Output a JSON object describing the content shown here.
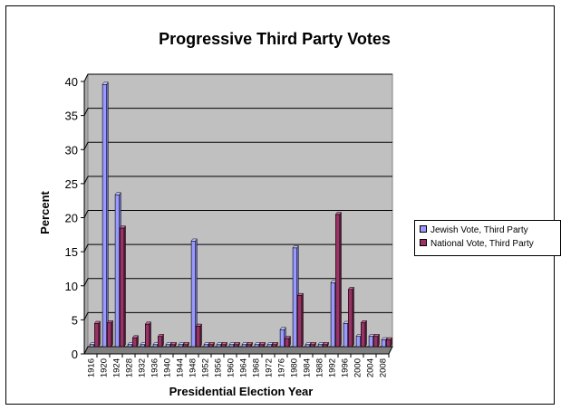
{
  "chart_data": {
    "type": "bar",
    "title": "Progressive Third Party Votes",
    "xlabel": "Presidential Election Year",
    "ylabel": "Percent",
    "ylim": [
      0,
      40
    ],
    "yticks": [
      0,
      5,
      10,
      15,
      20,
      25,
      30,
      35,
      40
    ],
    "grid": true,
    "legend_position": "right",
    "categories": [
      "1916",
      "1920",
      "1924",
      "1928",
      "1932",
      "1936",
      "1940",
      "1944",
      "1948",
      "1952",
      "1956",
      "1960",
      "1964",
      "1968",
      "1972",
      "1976",
      "1980",
      "1984",
      "1988",
      "1992",
      "1996",
      "2000",
      "2004",
      "2008"
    ],
    "series": [
      {
        "name": "Jewish Vote, Third Party",
        "color": "#9999ff",
        "values": [
          0,
          38.5,
          22.3,
          0,
          0,
          0,
          0,
          0,
          15.5,
          0,
          0,
          0,
          0,
          0,
          0,
          2.5,
          14.5,
          0,
          0,
          9.4,
          3.4,
          1.5,
          1.5,
          1
        ]
      },
      {
        "name": "National Vote, Third Party",
        "color": "#993366",
        "values": [
          3.4,
          3.5,
          17.4,
          1.3,
          3.3,
          1.5,
          0,
          0,
          3.0,
          0,
          0,
          0,
          0,
          0,
          0,
          1.2,
          7.5,
          0,
          0,
          19.4,
          8.4,
          3.5,
          1.5,
          1
        ]
      }
    ]
  }
}
